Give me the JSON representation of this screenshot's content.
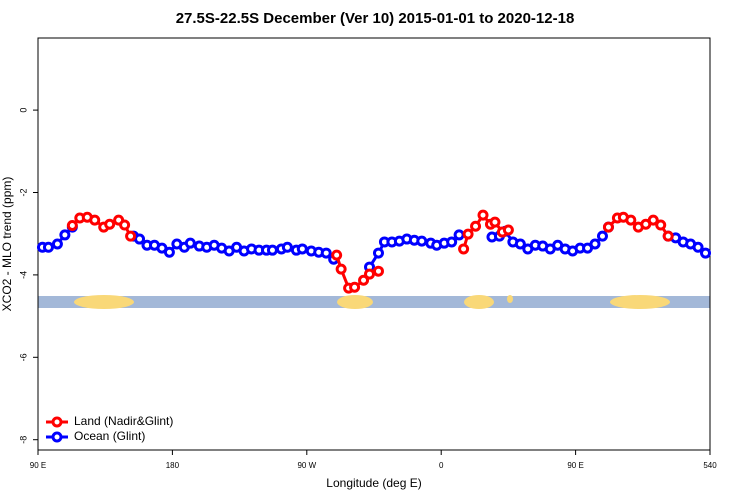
{
  "chart_data": {
    "type": "line",
    "title": "27.5S-22.5S December (Ver 10)   2015-01-01 to 2020-12-18",
    "x_label": "Longitude (deg E)",
    "y_label": "XCO2 - MLO trend (ppm)",
    "xlim": [
      90,
      540
    ],
    "ylim": [
      -8.25,
      1.75
    ],
    "xticks": [
      {
        "value": 90,
        "label": "90 E"
      },
      180,
      {
        "value": 270,
        "label": "90 W"
      },
      {
        "value": 360,
        "label": "0"
      },
      {
        "value": 450,
        "label": "90 E"
      },
      540
    ],
    "yticks": [
      0,
      -2,
      -4,
      -6,
      -8
    ],
    "legend": "bottom-left",
    "series": [
      {
        "name": "Ocean (Glint)",
        "color": "#0000ff",
        "x": [
          93,
          97,
          103,
          108,
          113,
          130,
          154,
          158,
          163,
          168,
          173,
          178,
          183,
          188,
          192,
          198,
          203,
          208,
          213,
          218,
          223,
          228,
          233,
          238,
          243,
          247,
          253,
          257,
          263,
          267,
          273,
          278,
          283,
          288,
          300,
          312,
          318,
          322,
          327,
          332,
          337,
          342,
          347,
          353,
          357,
          362,
          367,
          372,
          383,
          394,
          399,
          403,
          408,
          413,
          418,
          423,
          428,
          433,
          438,
          443,
          448,
          453,
          458,
          463,
          468,
          472,
          490,
          512,
          517,
          522,
          527,
          532,
          537
        ],
        "values": [
          -3.33,
          -3.33,
          -3.25,
          -3.03,
          -2.84,
          null,
          -3.06,
          -3.13,
          -3.28,
          -3.28,
          -3.35,
          -3.45,
          -3.25,
          -3.33,
          -3.23,
          -3.3,
          -3.33,
          -3.28,
          -3.35,
          -3.42,
          -3.33,
          -3.42,
          -3.37,
          -3.4,
          -3.4,
          -3.4,
          -3.37,
          -3.33,
          -3.4,
          -3.37,
          -3.42,
          -3.45,
          -3.47,
          -3.62,
          null,
          -3.81,
          -3.47,
          -3.2,
          -3.2,
          -3.18,
          -3.13,
          -3.16,
          -3.18,
          -3.23,
          -3.28,
          -3.23,
          -3.2,
          -3.03,
          null,
          -3.08,
          -3.06,
          -2.94,
          -3.2,
          -3.25,
          -3.37,
          -3.28,
          -3.3,
          -3.37,
          -3.28,
          -3.37,
          -3.42,
          -3.35,
          -3.35,
          -3.25,
          -3.06,
          -2.84,
          null,
          -3.06,
          -3.1,
          -3.2,
          -3.25,
          -3.33,
          -3.47
        ]
      },
      {
        "name": "Land (Nadir&Glint)",
        "color": "#ff0000",
        "x": [
          113,
          118,
          123,
          128,
          134,
          138,
          144,
          148,
          152,
          220,
          290,
          293,
          298,
          302,
          308,
          312,
          318,
          350,
          375,
          378,
          383,
          388,
          393,
          396,
          401,
          405,
          440,
          472,
          478,
          482,
          487,
          492,
          497,
          502,
          507,
          512
        ],
        "values": [
          -2.8,
          -2.62,
          -2.6,
          -2.67,
          -2.84,
          -2.77,
          -2.67,
          -2.79,
          -3.06,
          null,
          -3.52,
          -3.86,
          -4.32,
          -4.3,
          -4.13,
          -3.98,
          -3.91,
          null,
          -3.37,
          -3.01,
          -2.82,
          -2.55,
          -2.77,
          -2.72,
          -2.96,
          -2.91,
          null,
          -2.84,
          -2.62,
          -2.6,
          -2.67,
          -2.84,
          -2.77,
          -2.67,
          -2.79,
          -3.06
        ]
      }
    ]
  }
}
